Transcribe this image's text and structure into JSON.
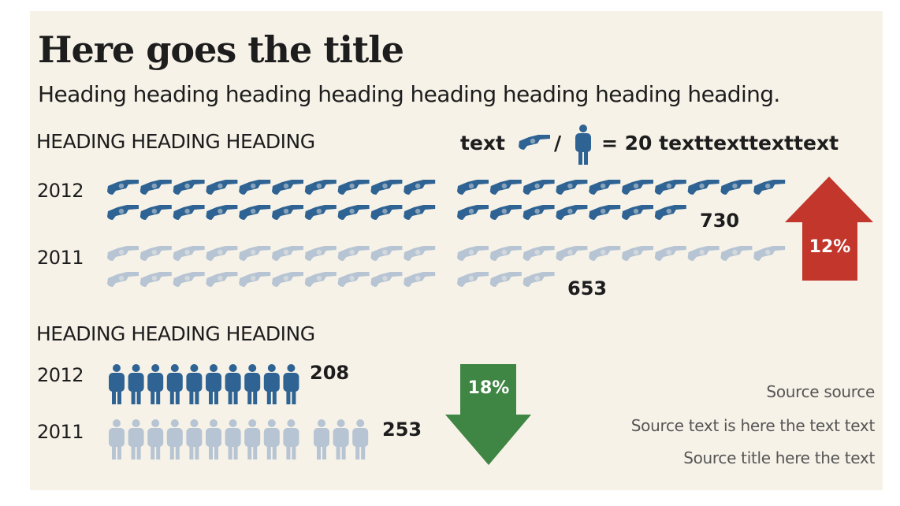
{
  "title": "Here goes the title",
  "subtitle": "Heading heading heading heading heading heading heading heading.",
  "legend": {
    "text": "text",
    "separator": "/",
    "equals": "= 20 texttexttexttext",
    "unit_value": 20,
    "icons": [
      "revolver-icon",
      "person-icon"
    ]
  },
  "colors": {
    "current": "#2f6393",
    "previous": "#b6c4d3",
    "increase": "#c2362c",
    "decrease": "#3f8543",
    "background": "#f6f2e8"
  },
  "chart_data": [
    {
      "type": "pictograph",
      "heading": "HEADING HEADING HEADING",
      "icon": "revolver-icon",
      "categories": [
        "2012",
        "2011"
      ],
      "values": [
        730,
        653
      ],
      "icon_counts": [
        37,
        33
      ],
      "change": {
        "label": "12%",
        "direction": "up"
      }
    },
    {
      "type": "pictograph",
      "heading": "HEADING HEADING HEADING",
      "icon": "person-icon",
      "categories": [
        "2012",
        "2011"
      ],
      "values": [
        208,
        253
      ],
      "icon_counts": [
        10,
        13
      ],
      "change": {
        "label": "18%",
        "direction": "down"
      }
    }
  ],
  "sources": [
    "Source source",
    "Source text is here the text text",
    "Source title here the text"
  ]
}
